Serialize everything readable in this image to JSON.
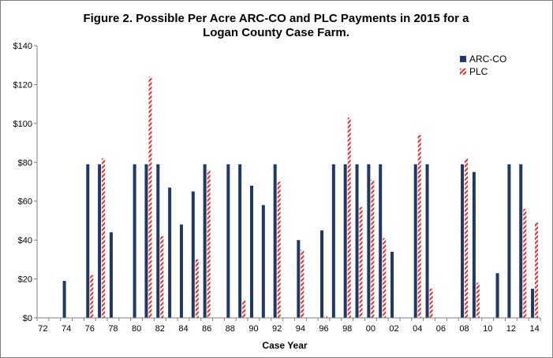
{
  "chart_data": {
    "type": "bar",
    "title_line1": "Figure 2. Possible Per Acre ARC-CO and PLC Payments in 2015 for a",
    "title_line2": "Logan County Case Farm.",
    "xlabel": "Case Year",
    "ylabel": "",
    "ylim": [
      0,
      140
    ],
    "y_ticks": [
      "$0",
      "$20",
      "$40",
      "$60",
      "$80",
      "$100",
      "$120",
      "$140"
    ],
    "y_tick_values": [
      0,
      20,
      40,
      60,
      80,
      100,
      120,
      140
    ],
    "grid": false,
    "legend_position": "top-right",
    "categories": [
      "72",
      "73",
      "74",
      "75",
      "76",
      "77",
      "78",
      "79",
      "80",
      "81",
      "82",
      "83",
      "84",
      "85",
      "86",
      "87",
      "88",
      "89",
      "90",
      "91",
      "92",
      "93",
      "94",
      "95",
      "96",
      "97",
      "98",
      "99",
      "00",
      "01",
      "02",
      "03",
      "04",
      "05",
      "06",
      "07",
      "08",
      "09",
      "10",
      "11",
      "12",
      "13",
      "14"
    ],
    "x_tick_labels": [
      "72",
      "74",
      "76",
      "78",
      "80",
      "82",
      "84",
      "86",
      "88",
      "90",
      "92",
      "94",
      "96",
      "98",
      "00",
      "02",
      "04",
      "06",
      "08",
      "10",
      "12",
      "14"
    ],
    "series": [
      {
        "name": "ARC-CO",
        "color": "#1f3864",
        "pattern": "solid",
        "values": [
          0,
          0,
          19,
          0,
          79,
          79,
          44,
          0,
          79,
          79,
          79,
          67,
          48,
          65,
          79,
          0,
          79,
          79,
          68,
          58,
          79,
          0,
          40,
          0,
          45,
          79,
          79,
          79,
          79,
          79,
          34,
          0,
          79,
          79,
          0,
          0,
          79,
          75,
          0,
          23,
          79,
          79,
          15
        ]
      },
      {
        "name": "PLC",
        "color": "#e03030",
        "pattern": "hatched",
        "values": [
          0,
          0,
          0,
          0,
          22,
          82,
          0,
          0,
          0,
          124,
          42,
          0,
          0,
          30,
          76,
          0,
          0,
          9,
          0,
          0,
          70,
          0,
          35,
          0,
          1,
          0,
          103,
          57,
          71,
          41,
          0,
          0,
          94,
          15,
          0,
          0,
          82,
          18,
          0,
          0,
          0,
          56,
          49
        ]
      }
    ]
  }
}
